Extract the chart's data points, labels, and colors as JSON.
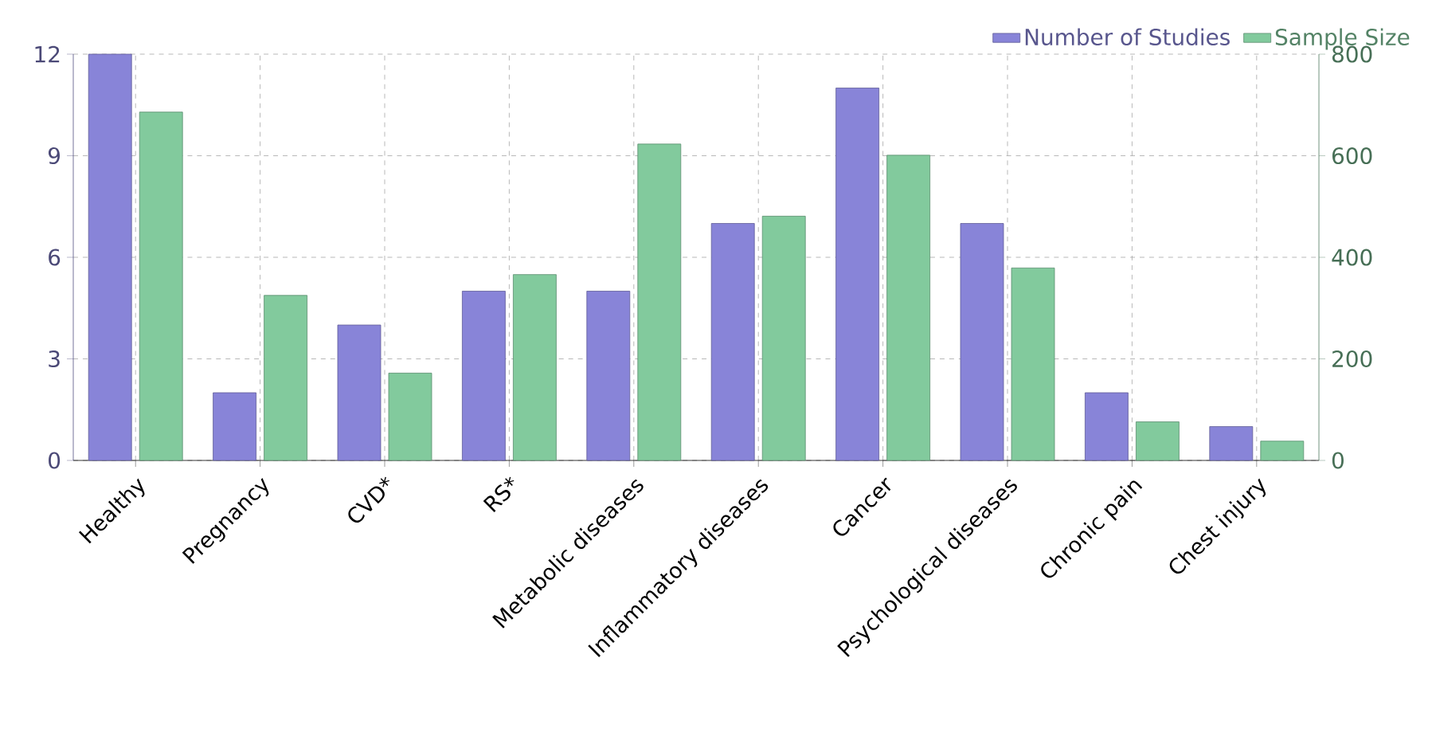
{
  "chart_data": {
    "type": "bar",
    "categories": [
      "Healthy",
      "Pregnancy",
      "CVD*",
      "RS*",
      "Metabolic diseases",
      "Inflammatory diseases",
      "Cancer",
      "Psychological diseases",
      "Chronic pain",
      "Chest injury"
    ],
    "series": [
      {
        "name": "Number of Studies",
        "color": "#8884d8",
        "axis": "y",
        "values": [
          12,
          2,
          4,
          5,
          5,
          7,
          11,
          7,
          2,
          1
        ]
      },
      {
        "name": "Sample Size",
        "color": "#82ca9d",
        "axis": "y2",
        "values": [
          686,
          325,
          172,
          366,
          623,
          481,
          601,
          379,
          76,
          38
        ]
      }
    ],
    "ylim": [
      0,
      12
    ],
    "yticks": [
      0,
      3,
      6,
      9,
      12
    ],
    "y2lim": [
      0,
      800
    ],
    "y2ticks": [
      0,
      200,
      400,
      600,
      800
    ],
    "grid": true,
    "legend": "top right"
  }
}
